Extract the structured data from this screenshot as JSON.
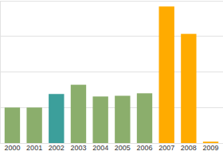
{
  "chart_data": {
    "type": "bar",
    "categories": [
      "2000",
      "2001",
      "2002",
      "2003",
      "2004",
      "2005",
      "2006",
      "2007",
      "2008",
      "2009"
    ],
    "values": [
      1.0,
      1.0,
      1.38,
      1.64,
      1.31,
      1.33,
      1.4,
      3.84,
      3.07,
      0.04
    ],
    "colors": [
      "#8bae6c",
      "#8bae6c",
      "#3c9f9b",
      "#8bae6c",
      "#8bae6c",
      "#8bae6c",
      "#8bae6c",
      "#ffab00",
      "#ffab00",
      "#ffab00"
    ],
    "ylim": [
      0,
      4
    ],
    "yticks": [
      0,
      1,
      2,
      3,
      4
    ],
    "grid": true,
    "tick_labels": "x"
  }
}
